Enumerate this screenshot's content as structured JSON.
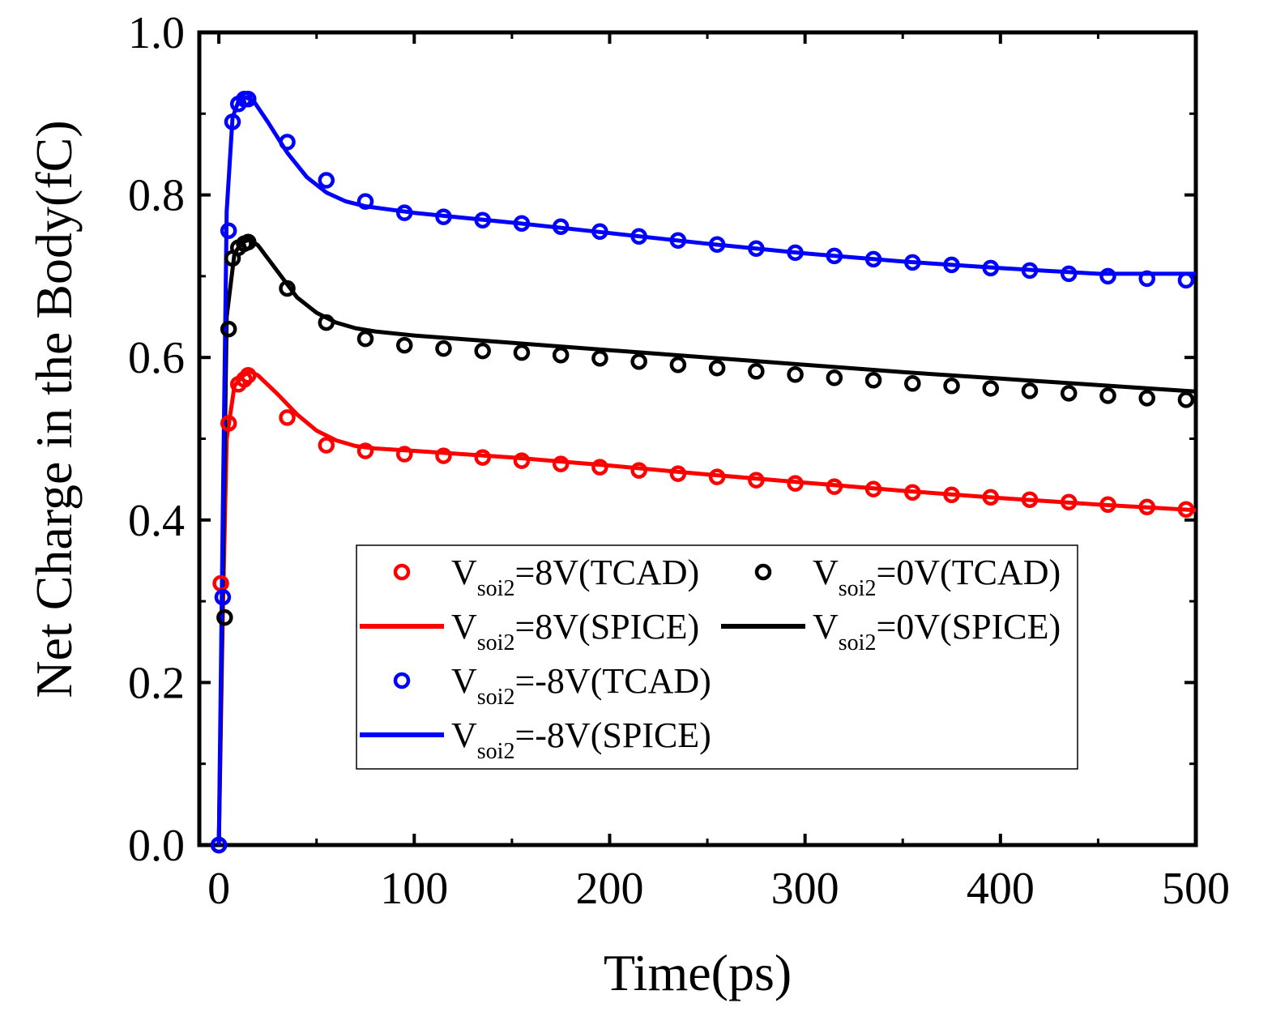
{
  "chart_data": {
    "type": "line",
    "title": "",
    "xlabel": "Time(ps)",
    "ylabel": "Net Charge in the Body(fC)",
    "xlim": [
      -10,
      500
    ],
    "ylim": [
      0,
      1.0
    ],
    "xticks": [
      0,
      100,
      200,
      300,
      400,
      500
    ],
    "xtick_labels": [
      "0",
      "100",
      "200",
      "300",
      "400",
      "500"
    ],
    "yticks": [
      0,
      0.2,
      0.4,
      0.6,
      0.8,
      1.0
    ],
    "ytick_labels": [
      "0.0",
      "0.2",
      "0.4",
      "0.6",
      "0.8",
      "1.0"
    ],
    "grid": false,
    "legend_position": "bottom-center",
    "series": [
      {
        "name": "V_soi2=8V(TCAD)",
        "base": "V",
        "sub": "soi2",
        "suffix": "=8V(TCAD)",
        "kind": "scatter",
        "color": "#ff0000",
        "x": [
          0,
          1,
          5,
          10,
          13,
          15,
          35,
          55,
          75,
          95,
          115,
          135,
          155,
          175,
          195,
          215,
          235,
          255,
          275,
          295,
          315,
          335,
          355,
          375,
          395,
          415,
          435,
          455,
          475,
          495
        ],
        "y": [
          0,
          0.322,
          0.519,
          0.567,
          0.573,
          0.578,
          0.526,
          0.492,
          0.485,
          0.481,
          0.479,
          0.477,
          0.473,
          0.469,
          0.465,
          0.461,
          0.457,
          0.453,
          0.449,
          0.445,
          0.441,
          0.438,
          0.434,
          0.431,
          0.428,
          0.425,
          0.422,
          0.419,
          0.416,
          0.413
        ]
      },
      {
        "name": "V_soi2=0V(TCAD)",
        "base": "V",
        "sub": "soi2",
        "suffix": "=0V(TCAD)",
        "kind": "scatter",
        "color": "#000000",
        "x": [
          0,
          3,
          5,
          7,
          10,
          13,
          15,
          35,
          55,
          75,
          95,
          115,
          135,
          155,
          175,
          195,
          215,
          235,
          255,
          275,
          295,
          315,
          335,
          355,
          375,
          395,
          415,
          435,
          455,
          475,
          495
        ],
        "y": [
          0,
          0.28,
          0.635,
          0.722,
          0.735,
          0.74,
          0.742,
          0.685,
          0.643,
          0.623,
          0.615,
          0.611,
          0.608,
          0.606,
          0.603,
          0.599,
          0.595,
          0.591,
          0.587,
          0.583,
          0.579,
          0.575,
          0.572,
          0.568,
          0.565,
          0.562,
          0.559,
          0.556,
          0.553,
          0.55,
          0.548
        ]
      },
      {
        "name": "V_soi2=8V(SPICE)",
        "base": "V",
        "sub": "soi2",
        "suffix": "=8V(SPICE)",
        "kind": "line",
        "color": "#ff0000",
        "x": [
          0,
          2,
          4,
          8,
          12,
          16,
          20,
          30,
          40,
          50,
          60,
          70,
          80,
          100,
          150,
          200,
          250,
          300,
          350,
          400,
          450,
          500
        ],
        "y": [
          0,
          0.28,
          0.5,
          0.565,
          0.577,
          0.583,
          0.578,
          0.555,
          0.53,
          0.51,
          0.498,
          0.491,
          0.488,
          0.485,
          0.477,
          0.467,
          0.456,
          0.446,
          0.436,
          0.427,
          0.419,
          0.412
        ]
      },
      {
        "name": "V_soi2=0V(SPICE)",
        "base": "V",
        "sub": "soi2",
        "suffix": "=0V(SPICE)",
        "kind": "line",
        "color": "#000000",
        "x": [
          0,
          2,
          4,
          8,
          12,
          16,
          20,
          30,
          40,
          50,
          60,
          70,
          80,
          100,
          150,
          200,
          250,
          300,
          350,
          400,
          450,
          500
        ],
        "y": [
          0,
          0.32,
          0.65,
          0.728,
          0.742,
          0.745,
          0.738,
          0.706,
          0.674,
          0.655,
          0.643,
          0.636,
          0.632,
          0.627,
          0.618,
          0.609,
          0.6,
          0.591,
          0.582,
          0.574,
          0.566,
          0.558
        ]
      },
      {
        "name": "V_soi2=-8V(TCAD)",
        "base": "V",
        "sub": "soi2",
        "suffix": "=-8V(TCAD)",
        "kind": "scatter",
        "color": "#0000ff",
        "x": [
          0,
          2,
          5,
          7,
          10,
          13,
          15,
          35,
          55,
          75,
          95,
          115,
          135,
          155,
          175,
          195,
          215,
          235,
          255,
          275,
          295,
          315,
          335,
          355,
          375,
          395,
          415,
          435,
          455,
          475,
          495
        ],
        "y": [
          0,
          0.305,
          0.756,
          0.89,
          0.912,
          0.918,
          0.918,
          0.865,
          0.818,
          0.792,
          0.778,
          0.773,
          0.769,
          0.765,
          0.761,
          0.755,
          0.749,
          0.744,
          0.739,
          0.734,
          0.729,
          0.725,
          0.721,
          0.717,
          0.714,
          0.71,
          0.707,
          0.703,
          0.7,
          0.697,
          0.695
        ]
      },
      {
        "name": "V_soi2=-8V(SPICE)",
        "base": "V",
        "sub": "soi2",
        "suffix": "=-8V(SPICE)",
        "kind": "line",
        "color": "#0000ff",
        "x": [
          0,
          2,
          4,
          7,
          10,
          14,
          18,
          25,
          35,
          45,
          55,
          65,
          75,
          100,
          150,
          200,
          250,
          300,
          350,
          400,
          450,
          500
        ],
        "y": [
          0,
          0.4,
          0.78,
          0.895,
          0.915,
          0.92,
          0.915,
          0.89,
          0.852,
          0.822,
          0.803,
          0.792,
          0.786,
          0.778,
          0.766,
          0.753,
          0.74,
          0.728,
          0.718,
          0.71,
          0.703,
          0.703
        ]
      }
    ]
  }
}
